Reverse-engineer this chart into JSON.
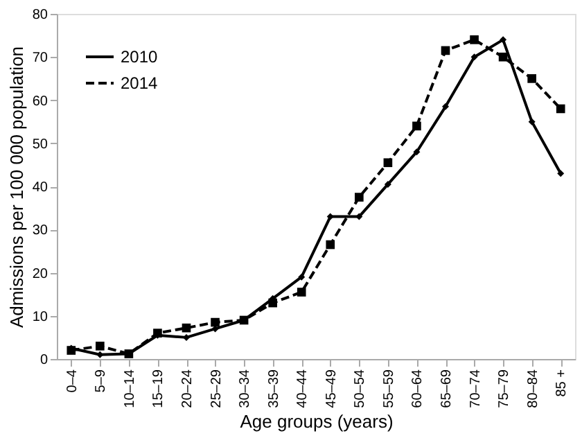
{
  "chart_data": {
    "type": "line",
    "xlabel": "Age groups (years)",
    "ylabel": "Admissions per 100 000 population",
    "categories": [
      "0–4",
      "5–9",
      "10–14",
      "15–19",
      "20–24",
      "25–29",
      "30–34",
      "35–39",
      "40–44",
      "45–49",
      "50–54",
      "55–59",
      "60–64",
      "65–69",
      "70–74",
      "75–79",
      "80–84",
      "85 +"
    ],
    "series": [
      {
        "name": "2010",
        "color": "#000000",
        "marker": "diamond",
        "line_style": "solid",
        "values": [
          2.5,
          1,
          1.2,
          5.5,
          5,
          7,
          9,
          14,
          19,
          33,
          33,
          40.5,
          48,
          58.5,
          70,
          74,
          55,
          43
        ]
      },
      {
        "name": "2014",
        "color": "#000000",
        "marker": "square",
        "line_style": "dashed",
        "values": [
          2,
          3,
          1.2,
          6,
          7.2,
          8.5,
          9,
          13,
          15.5,
          26.5,
          37.5,
          45.5,
          54,
          71.5,
          74,
          70,
          65,
          58
        ]
      }
    ],
    "ylim": [
      0,
      80
    ],
    "yticks": [
      0,
      10,
      20,
      30,
      40,
      50,
      60,
      70,
      80
    ],
    "grid": false,
    "legend": "top left"
  }
}
